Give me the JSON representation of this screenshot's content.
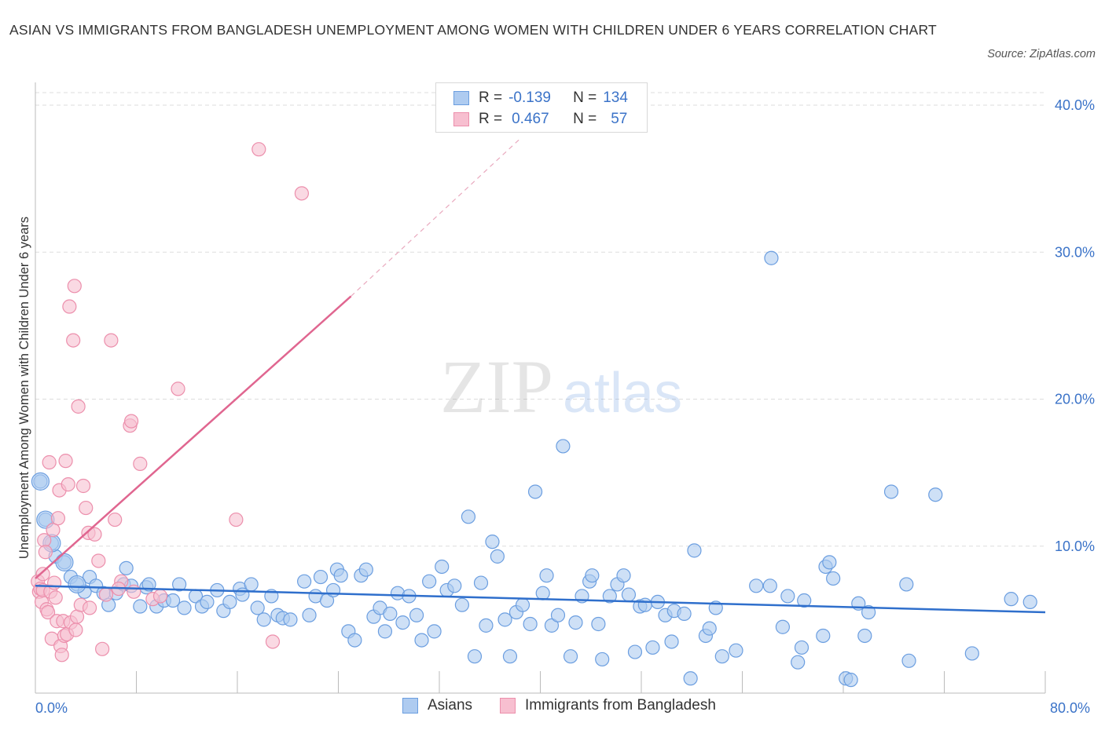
{
  "header": {
    "title": "ASIAN VS IMMIGRANTS FROM BANGLADESH UNEMPLOYMENT AMONG WOMEN WITH CHILDREN UNDER 6 YEARS CORRELATION CHART",
    "source": "Source: ZipAtlas.com"
  },
  "watermark": {
    "zip": "ZIP",
    "atlas": "atlas"
  },
  "legend": {
    "rows": [
      {
        "r_label": "R =",
        "r_value": "-0.139",
        "n_label": "N =",
        "n_value": "134"
      },
      {
        "r_label": "R =",
        "r_value": "0.467",
        "n_label": "N =",
        "n_value": "57"
      }
    ]
  },
  "colors": {
    "asians_fill": "#aecbf0",
    "asians_stroke": "#6b9ee0",
    "asians_line": "#2f6fcc",
    "bangladesh_fill": "#f7bfd0",
    "bangladesh_stroke": "#ec8fac",
    "bangladesh_line": "#e06690",
    "axis_text": "#3b73c8",
    "grid": "#dddddd"
  },
  "chart_data": {
    "type": "scatter",
    "title": "ASIAN VS IMMIGRANTS FROM BANGLADESH UNEMPLOYMENT AMONG WOMEN WITH CHILDREN UNDER 6 YEARS CORRELATION CHART",
    "xlabel": "",
    "ylabel": "Unemployment Among Women with Children Under 6 years",
    "xlim": [
      0,
      80
    ],
    "ylim": [
      0,
      40
    ],
    "x_tick_labels": {
      "min": "0.0%",
      "max": "80.0%"
    },
    "y_ticks": [
      10,
      20,
      30,
      40
    ],
    "y_tick_labels": [
      "10.0%",
      "20.0%",
      "30.0%",
      "40.0%"
    ],
    "legend_position": "bottom-center",
    "series": [
      {
        "name": "Asians",
        "r": -0.139,
        "n": 134,
        "trend": {
          "x0": 0,
          "y0": 7.3,
          "x1": 80,
          "y1": 5.5
        },
        "points": [
          [
            0.4,
            14.4
          ],
          [
            0.8,
            11.8
          ],
          [
            1.3,
            10.2
          ],
          [
            1.6,
            9.3
          ],
          [
            2.3,
            8.9
          ],
          [
            2.8,
            7.9
          ],
          [
            3.3,
            7.4
          ],
          [
            3.9,
            6.9
          ],
          [
            4.3,
            7.9
          ],
          [
            4.8,
            7.3
          ],
          [
            5.4,
            6.8
          ],
          [
            5.8,
            6.0
          ],
          [
            6.4,
            6.8
          ],
          [
            7.0,
            7.4
          ],
          [
            7.2,
            8.5
          ],
          [
            7.6,
            7.3
          ],
          [
            8.3,
            5.9
          ],
          [
            8.8,
            7.2
          ],
          [
            9.0,
            7.4
          ],
          [
            9.6,
            5.9
          ],
          [
            10.2,
            6.3
          ],
          [
            10.9,
            6.3
          ],
          [
            11.4,
            7.4
          ],
          [
            11.8,
            5.8
          ],
          [
            12.7,
            6.6
          ],
          [
            13.2,
            5.9
          ],
          [
            13.6,
            6.2
          ],
          [
            14.4,
            7.0
          ],
          [
            14.9,
            5.6
          ],
          [
            15.4,
            6.2
          ],
          [
            16.2,
            7.1
          ],
          [
            16.4,
            6.7
          ],
          [
            17.1,
            7.4
          ],
          [
            17.6,
            5.8
          ],
          [
            18.1,
            5.0
          ],
          [
            18.7,
            6.6
          ],
          [
            19.2,
            5.3
          ],
          [
            19.6,
            5.1
          ],
          [
            20.2,
            5.0
          ],
          [
            21.3,
            7.6
          ],
          [
            21.7,
            5.3
          ],
          [
            22.2,
            6.6
          ],
          [
            22.6,
            7.9
          ],
          [
            23.1,
            6.3
          ],
          [
            23.6,
            7.0
          ],
          [
            23.9,
            8.4
          ],
          [
            24.2,
            8.0
          ],
          [
            24.8,
            4.2
          ],
          [
            25.3,
            3.6
          ],
          [
            25.8,
            8.0
          ],
          [
            26.2,
            8.4
          ],
          [
            26.8,
            5.2
          ],
          [
            27.3,
            5.8
          ],
          [
            27.7,
            4.2
          ],
          [
            28.1,
            5.4
          ],
          [
            28.7,
            6.8
          ],
          [
            29.1,
            4.8
          ],
          [
            29.6,
            6.6
          ],
          [
            30.2,
            5.3
          ],
          [
            30.6,
            3.6
          ],
          [
            31.2,
            7.6
          ],
          [
            31.6,
            4.2
          ],
          [
            32.2,
            8.6
          ],
          [
            32.6,
            7.0
          ],
          [
            33.2,
            7.3
          ],
          [
            33.8,
            6.0
          ],
          [
            34.3,
            12.0
          ],
          [
            34.8,
            2.5
          ],
          [
            35.3,
            7.5
          ],
          [
            35.7,
            4.6
          ],
          [
            36.2,
            10.3
          ],
          [
            36.6,
            9.3
          ],
          [
            37.2,
            5.0
          ],
          [
            37.6,
            2.5
          ],
          [
            38.1,
            5.5
          ],
          [
            38.6,
            6.0
          ],
          [
            39.2,
            4.7
          ],
          [
            39.6,
            13.7
          ],
          [
            40.2,
            6.8
          ],
          [
            40.5,
            8.0
          ],
          [
            40.9,
            4.6
          ],
          [
            41.4,
            5.3
          ],
          [
            41.8,
            16.8
          ],
          [
            42.4,
            2.5
          ],
          [
            42.8,
            4.8
          ],
          [
            43.3,
            6.6
          ],
          [
            43.9,
            7.6
          ],
          [
            44.1,
            8.0
          ],
          [
            44.6,
            4.7
          ],
          [
            44.9,
            2.3
          ],
          [
            45.5,
            6.6
          ],
          [
            46.1,
            7.4
          ],
          [
            46.6,
            8.0
          ],
          [
            47.0,
            6.7
          ],
          [
            47.5,
            2.8
          ],
          [
            47.9,
            5.9
          ],
          [
            48.3,
            6.0
          ],
          [
            48.9,
            3.1
          ],
          [
            49.3,
            6.2
          ],
          [
            49.9,
            5.3
          ],
          [
            50.4,
            3.5
          ],
          [
            50.6,
            5.6
          ],
          [
            51.4,
            5.4
          ],
          [
            51.9,
            1.0
          ],
          [
            52.2,
            9.7
          ],
          [
            53.1,
            3.9
          ],
          [
            53.4,
            4.4
          ],
          [
            53.9,
            5.8
          ],
          [
            54.4,
            2.5
          ],
          [
            55.5,
            2.9
          ],
          [
            57.1,
            7.3
          ],
          [
            58.2,
            7.3
          ],
          [
            58.3,
            29.6
          ],
          [
            59.2,
            4.5
          ],
          [
            59.6,
            6.6
          ],
          [
            60.4,
            2.1
          ],
          [
            60.7,
            3.1
          ],
          [
            60.9,
            6.3
          ],
          [
            62.4,
            3.9
          ],
          [
            62.6,
            8.6
          ],
          [
            62.9,
            8.9
          ],
          [
            63.2,
            7.8
          ],
          [
            64.2,
            1.0
          ],
          [
            64.6,
            0.9
          ],
          [
            65.2,
            6.1
          ],
          [
            65.7,
            3.9
          ],
          [
            66.0,
            5.5
          ],
          [
            67.8,
            13.7
          ],
          [
            69.0,
            7.4
          ],
          [
            69.2,
            2.2
          ],
          [
            71.3,
            13.5
          ],
          [
            74.2,
            2.7
          ],
          [
            77.3,
            6.4
          ],
          [
            78.8,
            6.2
          ]
        ]
      },
      {
        "name": "Immigrants from Bangladesh",
        "r": 0.467,
        "n": 57,
        "trend": {
          "x0": 0,
          "y0": 7.8,
          "x1": 25,
          "y1": 27.0,
          "dashed_to_x": 38.5,
          "dashed_to_y": 37.8
        },
        "points": [
          [
            0.2,
            7.6
          ],
          [
            0.3,
            6.9
          ],
          [
            0.4,
            7.1
          ],
          [
            0.5,
            6.2
          ],
          [
            0.6,
            8.1
          ],
          [
            0.6,
            7.0
          ],
          [
            0.7,
            10.4
          ],
          [
            0.8,
            9.6
          ],
          [
            0.9,
            5.7
          ],
          [
            1.0,
            5.5
          ],
          [
            1.1,
            15.7
          ],
          [
            1.2,
            6.9
          ],
          [
            1.3,
            3.7
          ],
          [
            1.4,
            11.1
          ],
          [
            1.5,
            7.5
          ],
          [
            1.6,
            6.5
          ],
          [
            1.7,
            4.9
          ],
          [
            1.8,
            11.9
          ],
          [
            1.9,
            13.8
          ],
          [
            2.0,
            3.2
          ],
          [
            2.1,
            2.6
          ],
          [
            2.2,
            4.9
          ],
          [
            2.3,
            3.9
          ],
          [
            2.4,
            15.8
          ],
          [
            2.5,
            4.0
          ],
          [
            2.6,
            14.2
          ],
          [
            2.7,
            26.3
          ],
          [
            2.8,
            4.8
          ],
          [
            3.0,
            24.0
          ],
          [
            3.1,
            27.7
          ],
          [
            3.2,
            4.3
          ],
          [
            3.3,
            5.2
          ],
          [
            3.4,
            19.5
          ],
          [
            3.6,
            6.0
          ],
          [
            3.8,
            14.1
          ],
          [
            4.0,
            12.6
          ],
          [
            4.2,
            10.9
          ],
          [
            4.3,
            5.8
          ],
          [
            4.7,
            10.8
          ],
          [
            5.0,
            9.0
          ],
          [
            5.3,
            3.0
          ],
          [
            5.6,
            6.7
          ],
          [
            6.0,
            24.0
          ],
          [
            6.3,
            11.8
          ],
          [
            6.8,
            7.6
          ],
          [
            7.5,
            18.2
          ],
          [
            7.6,
            18.5
          ],
          [
            7.8,
            6.9
          ],
          [
            8.3,
            15.6
          ],
          [
            9.3,
            6.4
          ],
          [
            9.9,
            6.6
          ],
          [
            11.3,
            20.7
          ],
          [
            15.9,
            11.8
          ],
          [
            17.7,
            37.0
          ],
          [
            18.8,
            3.5
          ],
          [
            21.1,
            34.0
          ],
          [
            6.6,
            7.1
          ]
        ]
      }
    ]
  },
  "bottom_legend": {
    "asians": "Asians",
    "bangladesh": "Immigrants from Bangladesh"
  }
}
